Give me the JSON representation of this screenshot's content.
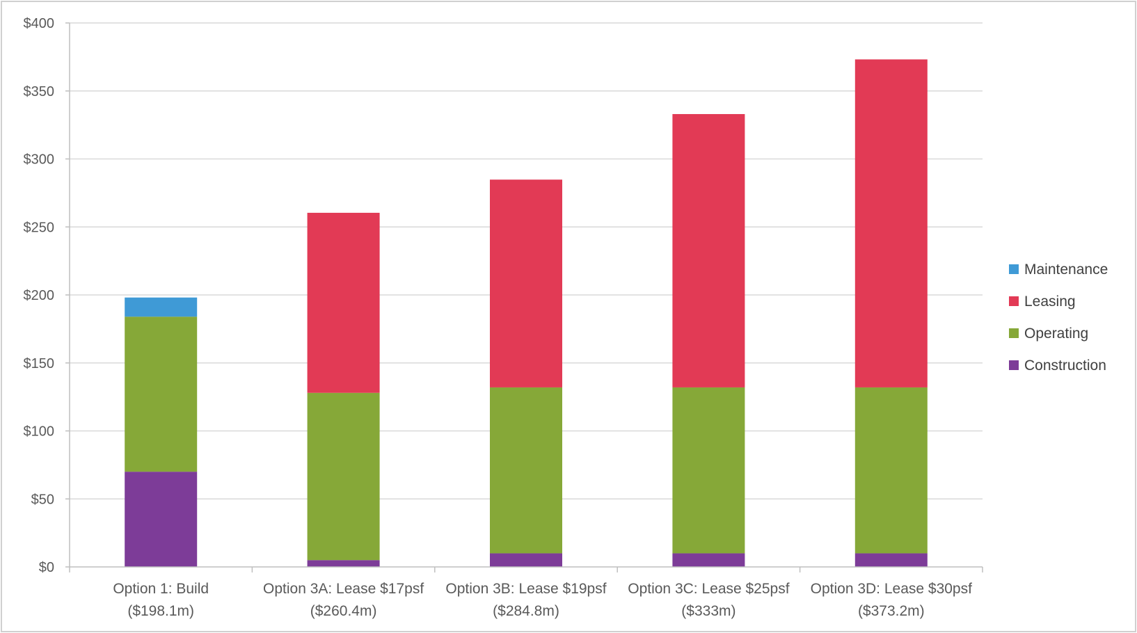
{
  "chart_data": {
    "type": "bar",
    "stacked": true,
    "categories": [
      [
        "Option 1: Build",
        "($198.1m)"
      ],
      [
        "Option 3A: Lease $17psf",
        "($260.4m)"
      ],
      [
        "Option 3B: Lease $19psf",
        "($284.8m)"
      ],
      [
        "Option 3C: Lease $25psf",
        "($333m)"
      ],
      [
        "Option 3D: Lease $30psf",
        "($373.2m)"
      ]
    ],
    "series": [
      {
        "name": "Construction",
        "color": "#7d3c98",
        "values": [
          70,
          5,
          10,
          10,
          10
        ]
      },
      {
        "name": "Operating",
        "color": "#86a838",
        "values": [
          114,
          123,
          122,
          122,
          122
        ]
      },
      {
        "name": "Leasing",
        "color": "#e23a55",
        "values": [
          0,
          132.4,
          152.8,
          201,
          241.2
        ]
      },
      {
        "name": "Maintenance",
        "color": "#3f9ad6",
        "values": [
          14.1,
          0,
          0,
          0,
          0
        ]
      }
    ],
    "legend_order": [
      "Maintenance",
      "Leasing",
      "Operating",
      "Construction"
    ],
    "legend_position": "right",
    "ylim": [
      0,
      400
    ],
    "yticks": [
      "$0",
      "$50",
      "$100",
      "$150",
      "$200",
      "$250",
      "$300",
      "$350",
      "$400"
    ],
    "ytick_values": [
      0,
      50,
      100,
      150,
      200,
      250,
      300,
      350,
      400
    ],
    "grid": true,
    "title": "",
    "xlabel": "",
    "ylabel": ""
  }
}
